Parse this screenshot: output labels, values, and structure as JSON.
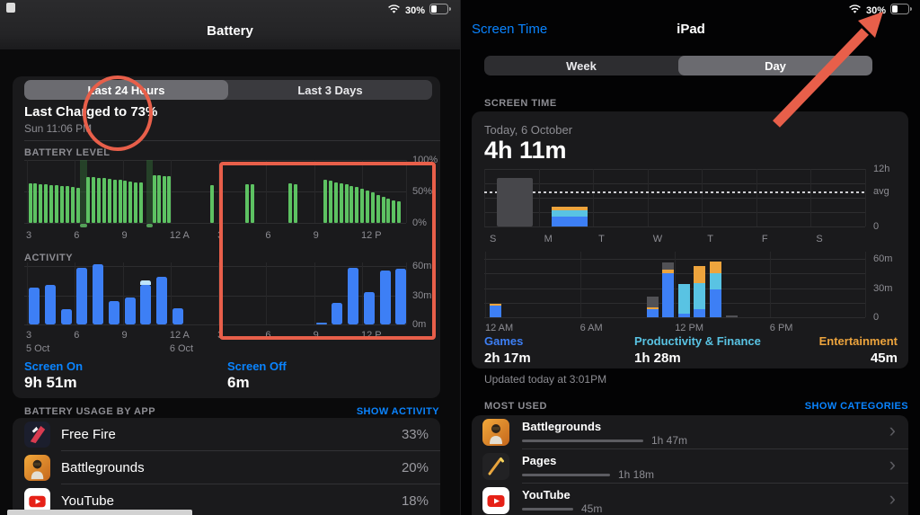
{
  "colors": {
    "accent_blue": "#0a84ff",
    "green": "#5dc262",
    "blue": "#3d7ff5",
    "cyan": "#59c3e3",
    "orange": "#eda43d",
    "gray_bar": "#515155",
    "annotation": "#e85f4a"
  },
  "left": {
    "status_battery": "30%",
    "nav_title": "Battery",
    "segmented": {
      "options": [
        "Last 24 Hours",
        "Last 3 Days"
      ],
      "selected": 0
    },
    "last_charged_title": "Last Charged to 73%",
    "last_charged_sub": "Sun 11:06 PM",
    "battery_section_label": "BATTERY LEVEL",
    "activity_section_label": "ACTIVITY",
    "screen_on_label": "Screen On",
    "screen_on_value": "9h 51m",
    "screen_off_label": "Screen Off",
    "screen_off_value": "6m",
    "usage_header": "BATTERY USAGE BY APP",
    "show_activity": "SHOW ACTIVITY",
    "apps": [
      {
        "name": "Free Fire",
        "pct": "33%",
        "icon": "freefire"
      },
      {
        "name": "Battlegrounds",
        "pct": "20%",
        "icon": "battlegrounds"
      },
      {
        "name": "YouTube",
        "pct": "18%",
        "icon": "youtube"
      }
    ]
  },
  "right": {
    "status_battery": "30%",
    "back_label": "Screen Time",
    "nav_title": "iPad",
    "segmented": {
      "options": [
        "Week",
        "Day"
      ],
      "selected": 1
    },
    "section_label": "SCREEN TIME",
    "today_label": "Today, 6 October",
    "total_time": "4h 11m",
    "updated": "Updated today at 3:01PM",
    "most_used_header": "MOST USED",
    "show_categories": "SHOW CATEGORIES",
    "most_used": [
      {
        "name": "Battlegrounds",
        "duration": "1h 47m",
        "minutes": 107,
        "icon": "battlegrounds"
      },
      {
        "name": "Pages",
        "duration": "1h 18m",
        "minutes": 78,
        "icon": "pages"
      },
      {
        "name": "YouTube",
        "duration": "45m",
        "minutes": 45,
        "icon": "youtube"
      }
    ]
  },
  "chart_data": [
    {
      "type": "bar",
      "title": "BATTERY LEVEL",
      "ylabel": "percent",
      "ylim": [
        0,
        100
      ],
      "y_labels": [
        "100%",
        "50%",
        "0%"
      ],
      "x_labels": [
        "3",
        "6",
        "9",
        "12 A",
        "3",
        "6",
        "9",
        "12 P"
      ],
      "x_tick_hours": [
        0,
        3,
        6,
        9,
        12,
        15,
        18,
        21
      ],
      "bars_hour_value": [
        [
          0.2,
          63
        ],
        [
          0.53,
          63
        ],
        [
          0.87,
          62
        ],
        [
          1.2,
          61
        ],
        [
          1.53,
          60
        ],
        [
          1.87,
          60
        ],
        [
          2.2,
          59
        ],
        [
          2.53,
          58
        ],
        [
          2.87,
          57
        ],
        [
          3.2,
          56
        ],
        [
          3.85,
          73
        ],
        [
          4.18,
          73
        ],
        [
          4.51,
          72
        ],
        [
          4.84,
          71
        ],
        [
          5.17,
          70
        ],
        [
          5.5,
          69
        ],
        [
          5.83,
          68
        ],
        [
          6.16,
          67
        ],
        [
          6.49,
          66
        ],
        [
          6.82,
          65
        ],
        [
          7.15,
          64
        ],
        [
          8.0,
          76
        ],
        [
          8.3,
          76
        ],
        [
          8.6,
          75
        ],
        [
          8.9,
          75
        ],
        [
          11.6,
          60
        ],
        [
          13.8,
          62
        ],
        [
          14.13,
          62
        ],
        [
          16.5,
          63
        ],
        [
          16.83,
          62
        ],
        [
          18.7,
          68
        ],
        [
          19.03,
          67
        ],
        [
          19.36,
          65
        ],
        [
          19.69,
          63
        ],
        [
          20.02,
          61
        ],
        [
          20.35,
          59
        ],
        [
          20.68,
          57
        ],
        [
          21.01,
          54
        ],
        [
          21.34,
          51
        ],
        [
          21.67,
          48
        ],
        [
          22.0,
          45
        ],
        [
          22.33,
          42
        ],
        [
          22.66,
          39
        ],
        [
          22.99,
          36
        ],
        [
          23.32,
          34
        ]
      ],
      "charge_bands_hours": [
        [
          3.35,
          3.75
        ],
        [
          7.5,
          7.9
        ]
      ]
    },
    {
      "type": "bar",
      "title": "ACTIVITY",
      "ylabel": "minutes",
      "ylim": [
        0,
        60
      ],
      "y_labels": [
        "60m",
        "30m",
        "0m"
      ],
      "x_labels": [
        "3",
        "6",
        "9",
        "12 A",
        "3",
        "6",
        "9",
        "12 P"
      ],
      "x_tick_hours": [
        0,
        3,
        6,
        9,
        12,
        15,
        18,
        21
      ],
      "date_labels": [
        [
          "5 Oct",
          0
        ],
        [
          "6 Oct",
          9
        ]
      ],
      "bars_hour_value_cap": [
        [
          0,
          38,
          0
        ],
        [
          1,
          41,
          0
        ],
        [
          2,
          16,
          0
        ],
        [
          3,
          58,
          0
        ],
        [
          4,
          62,
          0
        ],
        [
          5,
          24,
          0
        ],
        [
          6,
          28,
          0
        ],
        [
          7,
          41,
          4
        ],
        [
          8,
          49,
          0
        ],
        [
          9,
          17,
          0
        ],
        [
          18,
          2,
          0
        ],
        [
          19,
          22,
          0
        ],
        [
          20,
          58,
          0
        ],
        [
          21,
          33,
          0
        ],
        [
          22,
          55,
          0
        ],
        [
          23,
          57,
          0
        ]
      ]
    },
    {
      "type": "bar",
      "title": "Screen Time by day",
      "categories": [
        "S",
        "M",
        "T",
        "W",
        "T",
        "F",
        "S"
      ],
      "ylim": [
        0,
        12
      ],
      "y_labels": [
        "12h",
        "avg",
        "0"
      ],
      "avg_hours": 7.1,
      "bars": [
        {
          "day": 0,
          "style": "gray",
          "hours": 10.1
        },
        {
          "day": 1,
          "style": "stacked",
          "segments": [
            [
              "blue",
              2.05
            ],
            [
              "cyan",
              1.3
            ],
            [
              "orange",
              0.83
            ]
          ]
        }
      ]
    },
    {
      "type": "bar",
      "title": "Screen Time by hour",
      "ylim": [
        0,
        60
      ],
      "y_labels": [
        "60m",
        "30m",
        "0"
      ],
      "x_labels": [
        "12 AM",
        "6 AM",
        "12 PM",
        "6 PM"
      ],
      "x_tick_hours": [
        0,
        6,
        12,
        18
      ],
      "bars": [
        {
          "h": 0.3,
          "segs": [
            [
              "blue",
              12
            ],
            [
              "orange",
              2
            ]
          ]
        },
        {
          "h": 10.2,
          "segs": [
            [
              "blue",
              8
            ],
            [
              "orange",
              2
            ],
            [
              "gray",
              11
            ]
          ]
        },
        {
          "h": 11.2,
          "segs": [
            [
              "blue",
              45
            ],
            [
              "orange",
              4
            ],
            [
              "gray",
              7
            ]
          ]
        },
        {
          "h": 12.2,
          "segs": [
            [
              "blue",
              4
            ],
            [
              "cyan",
              30
            ]
          ]
        },
        {
          "h": 13.2,
          "segs": [
            [
              "blue",
              8
            ],
            [
              "cyan",
              27
            ],
            [
              "orange",
              18
            ]
          ]
        },
        {
          "h": 14.2,
          "segs": [
            [
              "blue",
              29
            ],
            [
              "cyan",
              16
            ],
            [
              "orange",
              12
            ]
          ]
        },
        {
          "h": 15.2,
          "segs": [
            [
              "gray",
              2
            ]
          ]
        }
      ],
      "legend": [
        {
          "label": "Games",
          "value": "2h 17m",
          "color": "blue"
        },
        {
          "label": "Productivity & Finance",
          "value": "1h 28m",
          "color": "cyan"
        },
        {
          "label": "Entertainment",
          "value": "45m",
          "color": "orange"
        }
      ]
    }
  ]
}
